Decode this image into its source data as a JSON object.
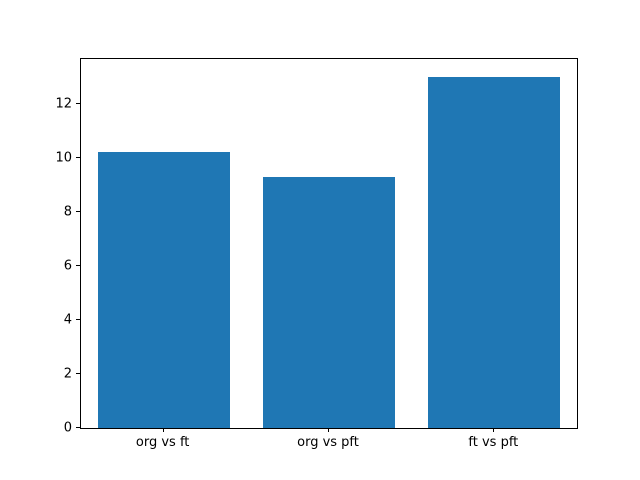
{
  "figure": {
    "background": "#ffffff",
    "bar_color": "#1f77b4",
    "axis_color": "#000000",
    "text_color": "#000000"
  },
  "chart_data": {
    "type": "bar",
    "title": "",
    "xlabel": "",
    "ylabel": "",
    "categories": [
      "org vs ft",
      "org vs pft",
      "ft vs pft"
    ],
    "values": [
      10.2,
      9.3,
      13.0
    ],
    "yticks": [
      0,
      2,
      4,
      6,
      8,
      10,
      12
    ],
    "ylim": [
      0,
      13.65
    ],
    "xlim": [
      -0.5,
      2.5
    ],
    "bar_width": 0.8,
    "grid": false,
    "legend": null
  }
}
